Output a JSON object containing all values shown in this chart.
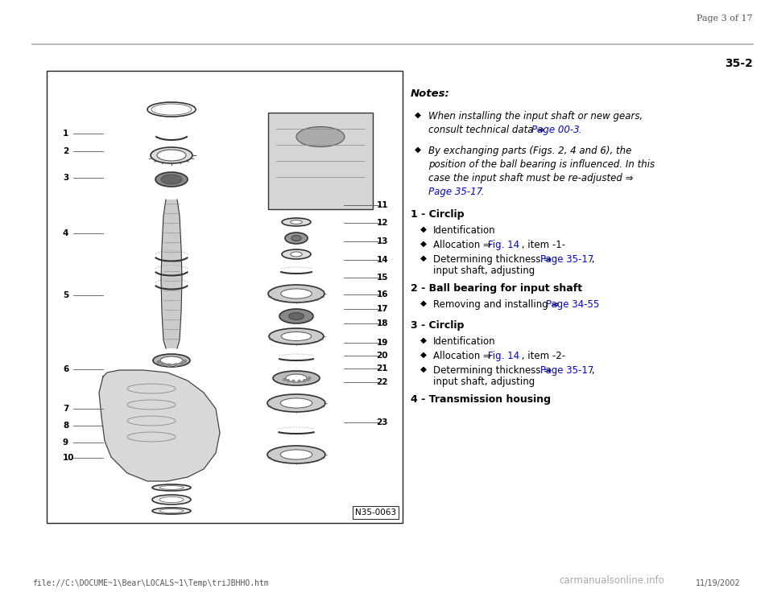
{
  "bg_color": "#ffffff",
  "page_header": "Page 3 of 17",
  "page_number": "35-2",
  "footer_left": "file://C:\\DOCUME~1\\Bear\\LOCALS~1\\Temp\\triJBHHO.htm",
  "footer_right": "11/19/2002",
  "watermark": "carmanualsonline.info",
  "notes_title": "Notes:",
  "bullet": "◆",
  "note1_line1": "When installing the input shaft or new gears,",
  "note1_line2_pre": "consult technical data ⇒ ",
  "note1_link": "Page 00-3",
  "note1_period": " .",
  "note2_line1": "By exchanging parts (Figs. 2, 4 and 6), the",
  "note2_line2": "position of the ball bearing is influenced. In this",
  "note2_line3": "case the input shaft must be re-adjusted ⇒",
  "note2_link": "Page 35-17",
  "note2_period": " .",
  "item1_heading": "1 - Circlip",
  "item1_sub1": "Identification",
  "item1_sub2_pre": "Allocation ⇒ ",
  "item1_sub2_link": "Fig. 14",
  "item1_sub2_post": " , item -1-",
  "item1_sub3_pre": "Determining thickness ⇒ ",
  "item1_sub3_link": "Page 35-17",
  "item1_sub3_post": " ,",
  "item1_sub3_line2": "input shaft, adjusting",
  "item2_heading": "2 - Ball bearing for input shaft",
  "item2_sub1_pre": "Removing and installing ⇒ ",
  "item2_sub1_link": "Page 34-55",
  "item3_heading": "3 - Circlip",
  "item3_sub1": "Identification",
  "item3_sub2_pre": "Allocation ⇒ ",
  "item3_sub2_link": "Fig. 14",
  "item3_sub2_post": " , item -2-",
  "item3_sub3_pre": "Determining thickness ⇒ ",
  "item3_sub3_link": "Page 35-17",
  "item3_sub3_post": " ,",
  "item3_sub3_line2": "input shaft, adjusting",
  "item4_heading": "4 - Transmission housing",
  "link_color": "#0000ee",
  "text_color": "#000000",
  "gray_color": "#555555",
  "diagram_label": "N35-0063",
  "left_nums": [
    [
      "10",
      0.855
    ],
    [
      "9",
      0.822
    ],
    [
      "8",
      0.785
    ],
    [
      "7",
      0.747
    ],
    [
      "6",
      0.66
    ],
    [
      "5",
      0.497
    ],
    [
      "4",
      0.36
    ],
    [
      "3",
      0.237
    ],
    [
      "2",
      0.178
    ],
    [
      "1",
      0.138
    ]
  ],
  "right_nums": [
    [
      "23",
      0.777
    ],
    [
      "22",
      0.688
    ],
    [
      "21",
      0.659
    ],
    [
      "20",
      0.63
    ],
    [
      "19",
      0.601
    ],
    [
      "18",
      0.558
    ],
    [
      "17",
      0.526
    ],
    [
      "16",
      0.495
    ],
    [
      "15",
      0.457
    ],
    [
      "14",
      0.418
    ],
    [
      "13",
      0.378
    ],
    [
      "12",
      0.337
    ],
    [
      "11",
      0.298
    ]
  ]
}
